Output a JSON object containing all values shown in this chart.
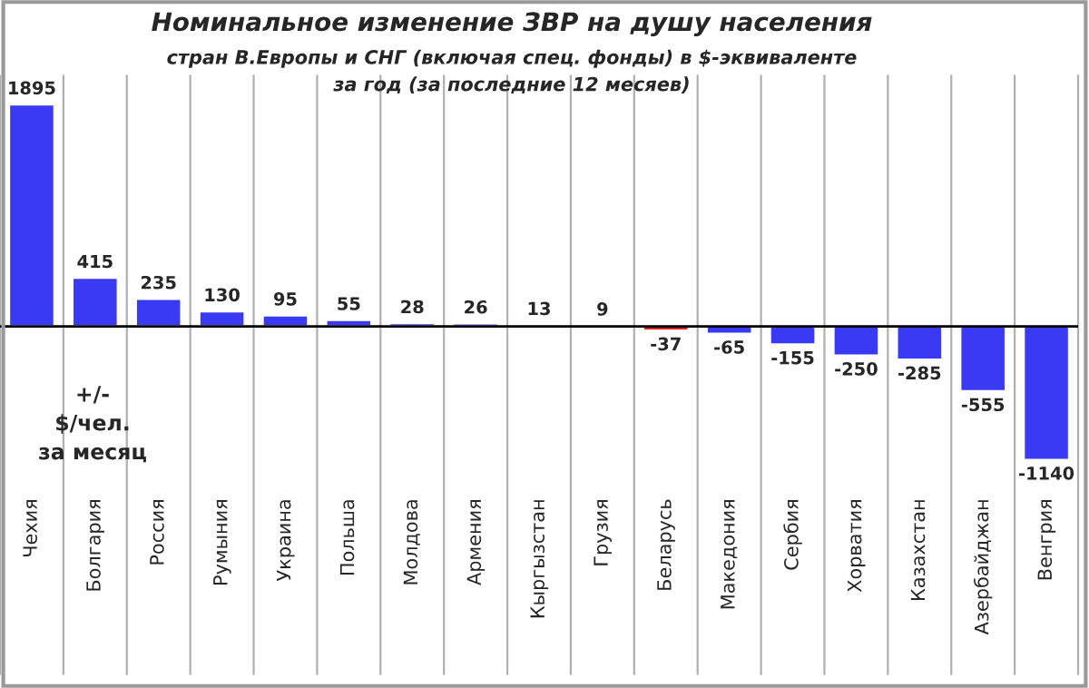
{
  "chart_data": {
    "type": "bar",
    "title": "Номинальное изменение ЗВР на душу населения",
    "subtitle": "стран В.Европы и СНГ (включая спец. фонды) в $-эквиваленте\nза год (за последние 12 месяев)",
    "categories": [
      "Чехия",
      "Болгария",
      "Россия",
      "Румыния",
      "Украина",
      "Польша",
      "Молдова",
      "Армения",
      "Кыргызстан",
      "Грузия",
      "Беларусь",
      "Македония",
      "Сербия",
      "Хорватия",
      "Казахстан",
      "Азербайджан",
      "Венгрия"
    ],
    "values": [
      1895,
      415,
      235,
      130,
      95,
      55,
      28,
      26,
      13,
      9,
      -37,
      -65,
      -155,
      -250,
      -285,
      -555,
      -1140
    ],
    "colors": [
      "#3a3af5",
      "#3a3af5",
      "#3a3af5",
      "#3a3af5",
      "#3a3af5",
      "#3a3af5",
      "#3a3af5",
      "#3a3af5",
      "#3a3af5",
      "#3a3af5",
      "#e02020",
      "#3a3af5",
      "#3a3af5",
      "#3a3af5",
      "#3a3af5",
      "#3a3af5",
      "#3a3af5"
    ],
    "tick_labels": "x",
    "grid": "x",
    "data_labels": true,
    "annotations": [
      "+/-\n$/чел.\nза месяц"
    ]
  }
}
